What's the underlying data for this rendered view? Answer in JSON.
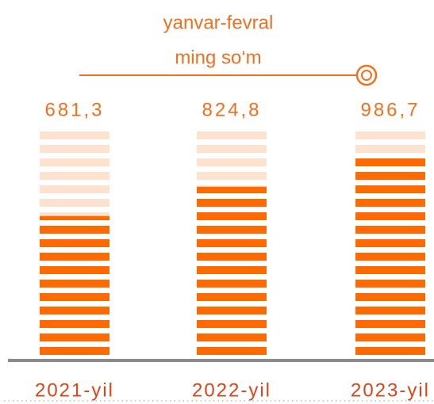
{
  "chart_data": {
    "type": "bar",
    "title": "yanvar-fevral",
    "subtitle": "ming so‘m",
    "categories": [
      "2021-yil",
      "2022-yil",
      "2023-yil"
    ],
    "values": [
      681.3,
      824.8,
      986.7
    ],
    "value_labels": [
      "681,3",
      "824,8",
      "986,7"
    ],
    "color": "#ff6a00",
    "ylim": [
      0,
      1100
    ]
  }
}
